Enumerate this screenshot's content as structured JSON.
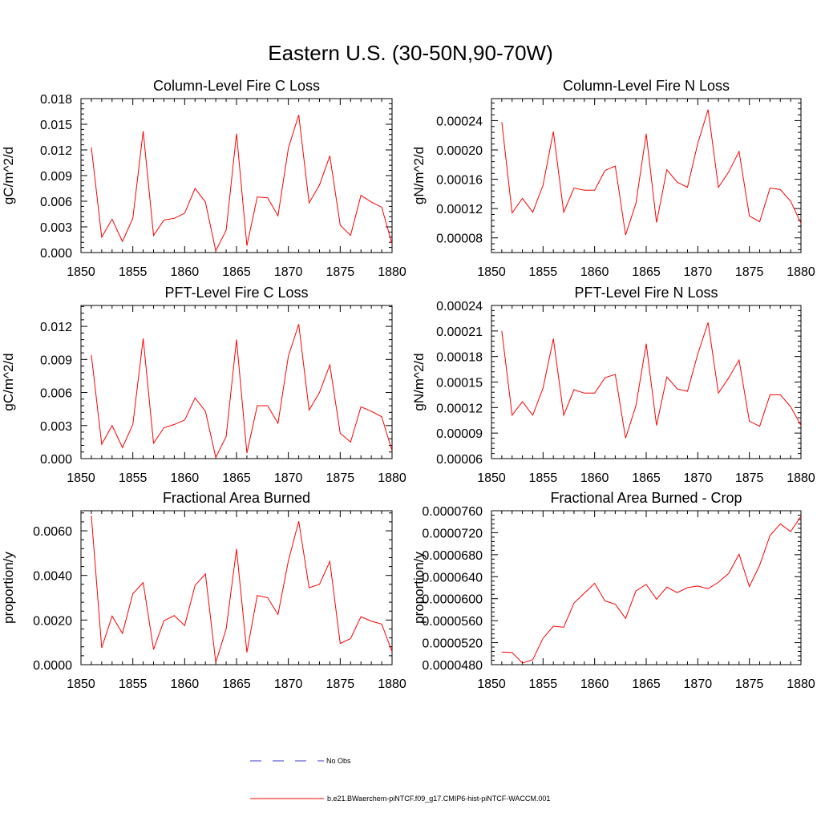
{
  "title": "Eastern U.S. (30-50N,90-70W)",
  "colors": {
    "model": "#ff0000",
    "obs": "#3b3bcc",
    "axis": "#000000"
  },
  "legend": {
    "obs_label": "No Obs",
    "model_label": "b.e21.BWaerchem-piNTCF.f09_g17.CMIP6-hist-piNTCF-WACCM.001"
  },
  "chart_data": [
    {
      "type": "line",
      "title": "Column-Level Fire C Loss",
      "ylabel": "gC/m^2/d",
      "xlim": [
        1850,
        1880
      ],
      "ylim": [
        0.0,
        0.018
      ],
      "xticks": [
        "1850",
        "1855",
        "1860",
        "1865",
        "1870",
        "1875",
        "1880"
      ],
      "yticks": [
        "0.000",
        "0.003",
        "0.006",
        "0.009",
        "0.012",
        "0.015",
        "0.018"
      ],
      "x": [
        1851,
        1852,
        1853,
        1854,
        1855,
        1856,
        1857,
        1858,
        1859,
        1860,
        1861,
        1862,
        1863,
        1864,
        1865,
        1866,
        1867,
        1868,
        1869,
        1870,
        1871,
        1872,
        1873,
        1874,
        1875,
        1876,
        1877,
        1878,
        1879,
        1880
      ],
      "series": [
        {
          "values": [
            0.0123,
            0.0018,
            0.0039,
            0.0013,
            0.004,
            0.0142,
            0.002,
            0.0038,
            0.004,
            0.0046,
            0.0075,
            0.0059,
            0.0002,
            0.0026,
            0.0139,
            0.0008,
            0.0065,
            0.0064,
            0.0043,
            0.0122,
            0.0161,
            0.0058,
            0.0079,
            0.0113,
            0.0032,
            0.002,
            0.0067,
            0.0059,
            0.0053,
            0.001
          ]
        }
      ]
    },
    {
      "type": "line",
      "title": "Column-Level Fire N Loss",
      "ylabel": "gN/m^2/d",
      "xlim": [
        1850,
        1880
      ],
      "ylim": [
        6e-05,
        0.00027
      ],
      "xticks": [
        "1850",
        "1855",
        "1860",
        "1865",
        "1870",
        "1875",
        "1880"
      ],
      "yticks": [
        "0.00008",
        "0.00012",
        "0.00016",
        "0.00020",
        "0.00024"
      ],
      "x": [
        1851,
        1852,
        1853,
        1854,
        1855,
        1856,
        1857,
        1858,
        1859,
        1860,
        1861,
        1862,
        1863,
        1864,
        1865,
        1866,
        1867,
        1868,
        1869,
        1870,
        1871,
        1872,
        1873,
        1874,
        1875,
        1876,
        1877,
        1878,
        1879,
        1880
      ],
      "series": [
        {
          "values": [
            0.000238,
            0.000114,
            0.000134,
            0.000115,
            0.000152,
            0.000225,
            0.000115,
            0.000148,
            0.000145,
            0.000145,
            0.000172,
            0.000178,
            8.4e-05,
            0.000127,
            0.000222,
            0.000101,
            0.000173,
            0.000156,
            0.000149,
            0.000209,
            0.000255,
            0.000149,
            0.00017,
            0.000198,
            0.00011,
            0.000102,
            0.000148,
            0.000146,
            0.00013,
            0.0001
          ]
        }
      ]
    },
    {
      "type": "line",
      "title": "PFT-Level Fire C Loss",
      "ylabel": "gC/m^2/d",
      "xlim": [
        1850,
        1880
      ],
      "ylim": [
        0.0,
        0.0139
      ],
      "xticks": [
        "1850",
        "1855",
        "1860",
        "1865",
        "1870",
        "1875",
        "1880"
      ],
      "yticks": [
        "0.000",
        "0.003",
        "0.006",
        "0.009",
        "0.012"
      ],
      "x": [
        1851,
        1852,
        1853,
        1854,
        1855,
        1856,
        1857,
        1858,
        1859,
        1860,
        1861,
        1862,
        1863,
        1864,
        1865,
        1866,
        1867,
        1868,
        1869,
        1870,
        1871,
        1872,
        1873,
        1874,
        1875,
        1876,
        1877,
        1878,
        1879,
        1880
      ],
      "series": [
        {
          "values": [
            0.0094,
            0.0013,
            0.003,
            0.001,
            0.0031,
            0.0109,
            0.0014,
            0.0028,
            0.0031,
            0.0035,
            0.0055,
            0.0043,
            0.0001,
            0.002,
            0.0108,
            0.0005,
            0.0048,
            0.0048,
            0.0032,
            0.0093,
            0.0122,
            0.0044,
            0.006,
            0.0085,
            0.0023,
            0.0015,
            0.0047,
            0.0043,
            0.0038,
            0.0007
          ]
        }
      ]
    },
    {
      "type": "line",
      "title": "PFT-Level Fire N Loss",
      "ylabel": "gN/m^2/d",
      "xlim": [
        1850,
        1880
      ],
      "ylim": [
        6e-05,
        0.00024
      ],
      "xticks": [
        "1850",
        "1855",
        "1860",
        "1865",
        "1870",
        "1875",
        "1880"
      ],
      "yticks": [
        "0.00006",
        "0.00009",
        "0.00012",
        "0.00015",
        "0.00018",
        "0.00021",
        "0.00024"
      ],
      "x": [
        1851,
        1852,
        1853,
        1854,
        1855,
        1856,
        1857,
        1858,
        1859,
        1860,
        1861,
        1862,
        1863,
        1864,
        1865,
        1866,
        1867,
        1868,
        1869,
        1870,
        1871,
        1872,
        1873,
        1874,
        1875,
        1876,
        1877,
        1878,
        1879,
        1880
      ],
      "series": [
        {
          "values": [
            0.00021,
            0.000111,
            0.000127,
            0.000111,
            0.000143,
            0.000201,
            0.000111,
            0.000141,
            0.000137,
            0.000137,
            0.000155,
            0.000159,
            8.4e-05,
            0.000122,
            0.000195,
            9.9e-05,
            0.000156,
            0.000142,
            0.000139,
            0.000183,
            0.00022,
            0.000137,
            0.000155,
            0.000176,
            0.000104,
            9.8e-05,
            0.000135,
            0.000135,
            0.000121,
            9.9e-05
          ]
        }
      ]
    },
    {
      "type": "line",
      "title": "Fractional Area Burned",
      "ylabel": "proportion/y",
      "xlim": [
        1850,
        1880
      ],
      "ylim": [
        0.0,
        0.0069
      ],
      "xticks": [
        "1850",
        "1855",
        "1860",
        "1865",
        "1870",
        "1875",
        "1880"
      ],
      "yticks": [
        "0.0000",
        "0.0020",
        "0.0040",
        "0.0060"
      ],
      "x": [
        1851,
        1852,
        1853,
        1854,
        1855,
        1856,
        1857,
        1858,
        1859,
        1860,
        1861,
        1862,
        1863,
        1864,
        1865,
        1866,
        1867,
        1868,
        1869,
        1870,
        1871,
        1872,
        1873,
        1874,
        1875,
        1876,
        1877,
        1878,
        1879,
        1880
      ],
      "series": [
        {
          "values": [
            0.00668,
            0.00075,
            0.00218,
            0.0014,
            0.00318,
            0.00368,
            0.00068,
            0.00197,
            0.0022,
            0.00175,
            0.00355,
            0.00407,
            0.0001,
            0.0016,
            0.00518,
            0.00055,
            0.0031,
            0.003,
            0.00225,
            0.00465,
            0.00643,
            0.00345,
            0.0036,
            0.00463,
            0.00095,
            0.00117,
            0.00215,
            0.00195,
            0.00182,
            0.00058
          ]
        }
      ]
    },
    {
      "type": "line",
      "title": "Fractional Area Burned - Crop",
      "ylabel": "proportion/y",
      "xlim": [
        1850,
        1880
      ],
      "ylim": [
        4.8e-05,
        7.6e-05
      ],
      "xticks": [
        "1850",
        "1855",
        "1860",
        "1865",
        "1870",
        "1875",
        "1880"
      ],
      "yticks": [
        "0.0000480",
        "0.0000520",
        "0.0000560",
        "0.0000600",
        "0.0000640",
        "0.0000680",
        "0.0000720",
        "0.0000760"
      ],
      "x": [
        1851,
        1852,
        1853,
        1854,
        1855,
        1856,
        1857,
        1858,
        1859,
        1860,
        1861,
        1862,
        1863,
        1864,
        1865,
        1866,
        1867,
        1868,
        1869,
        1870,
        1871,
        1872,
        1873,
        1874,
        1875,
        1876,
        1877,
        1878,
        1879,
        1880
      ],
      "series": [
        {
          "values": [
            5.03e-05,
            5.02e-05,
            4.83e-05,
            4.89e-05,
            5.28e-05,
            5.5e-05,
            5.48e-05,
            5.92e-05,
            6.1e-05,
            6.28e-05,
            5.96e-05,
            5.9e-05,
            5.64e-05,
            6.14e-05,
            6.26e-05,
            5.99e-05,
            6.21e-05,
            6.11e-05,
            6.2e-05,
            6.23e-05,
            6.18e-05,
            6.3e-05,
            6.46e-05,
            6.81e-05,
            6.22e-05,
            6.61e-05,
            7.15e-05,
            7.36e-05,
            7.22e-05,
            7.5e-05
          ]
        }
      ]
    }
  ]
}
